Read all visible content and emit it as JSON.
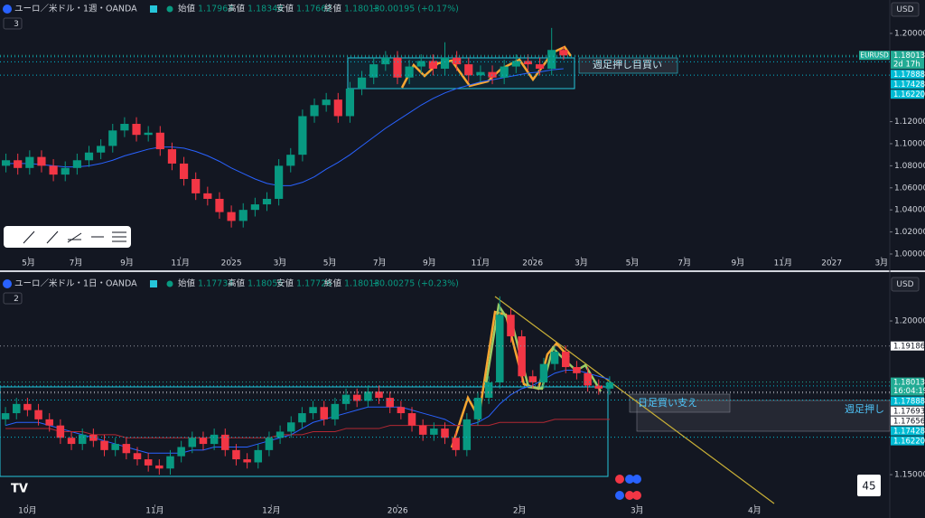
{
  "chart_data": [
    {
      "type": "candlestick",
      "symbol": "ユーロ／米ドル・1週・OANDA",
      "currency": "USD",
      "indicator_count": "3",
      "ohlc_header": {
        "open_label": "始値",
        "open": 1.17963,
        "high_label": "高値",
        "high": 1.18348,
        "low_label": "安値",
        "low": 1.17662,
        "close_label": "終値",
        "close": 1.18013,
        "change": "+0.00195 (+0.17%)"
      },
      "up_color": "#089981",
      "down_color": "#f23645",
      "open": [
        1.08,
        1.085,
        1.078,
        1.088,
        1.08,
        1.072,
        1.078,
        1.085,
        1.092,
        1.098,
        1.112,
        1.118,
        1.108,
        1.11,
        1.095,
        1.082,
        1.068,
        1.055,
        1.05,
        1.038,
        1.03,
        1.04,
        1.045,
        1.05,
        1.08,
        1.09,
        1.125,
        1.135,
        1.14,
        1.125,
        1.15,
        1.16,
        1.172,
        1.178,
        1.16,
        1.17,
        1.175,
        1.168,
        1.178,
        1.172,
        1.162,
        1.165,
        1.16,
        1.17,
        1.175,
        1.172,
        1.168,
        1.185
      ],
      "high": [
        1.091,
        1.091,
        1.094,
        1.094,
        1.086,
        1.084,
        1.091,
        1.098,
        1.104,
        1.118,
        1.124,
        1.124,
        1.116,
        1.116,
        1.101,
        1.088,
        1.074,
        1.061,
        1.056,
        1.044,
        1.046,
        1.051,
        1.056,
        1.086,
        1.096,
        1.131,
        1.141,
        1.146,
        1.146,
        1.156,
        1.166,
        1.178,
        1.184,
        1.184,
        1.176,
        1.181,
        1.181,
        1.192,
        1.184,
        1.178,
        1.171,
        1.171,
        1.176,
        1.181,
        1.181,
        1.178,
        1.205,
        1.188
      ],
      "low": [
        1.074,
        1.072,
        1.072,
        1.074,
        1.066,
        1.066,
        1.072,
        1.079,
        1.086,
        1.092,
        1.106,
        1.102,
        1.102,
        1.089,
        1.076,
        1.062,
        1.049,
        1.044,
        1.032,
        1.024,
        1.024,
        1.034,
        1.039,
        1.044,
        1.074,
        1.084,
        1.119,
        1.129,
        1.119,
        1.119,
        1.144,
        1.154,
        1.166,
        1.154,
        1.154,
        1.164,
        1.162,
        1.162,
        1.166,
        1.156,
        1.156,
        1.154,
        1.154,
        1.164,
        1.166,
        1.162,
        1.162,
        1.176
      ],
      "close": [
        1.085,
        1.078,
        1.088,
        1.08,
        1.072,
        1.078,
        1.085,
        1.092,
        1.098,
        1.112,
        1.118,
        1.108,
        1.11,
        1.095,
        1.082,
        1.068,
        1.055,
        1.05,
        1.038,
        1.03,
        1.04,
        1.045,
        1.05,
        1.08,
        1.09,
        1.125,
        1.135,
        1.14,
        1.125,
        1.15,
        1.16,
        1.172,
        1.178,
        1.16,
        1.17,
        1.175,
        1.168,
        1.178,
        1.172,
        1.162,
        1.165,
        1.16,
        1.17,
        1.175,
        1.172,
        1.168,
        1.185,
        1.18
      ],
      "moving_averages": [
        {
          "color": "#2962ff",
          "values": [
            1.082,
            1.082,
            1.082,
            1.081,
            1.08,
            1.079,
            1.079,
            1.08,
            1.082,
            1.085,
            1.089,
            1.092,
            1.095,
            1.097,
            1.097,
            1.096,
            1.093,
            1.089,
            1.084,
            1.078,
            1.073,
            1.068,
            1.064,
            1.062,
            1.062,
            1.065,
            1.07,
            1.077,
            1.083,
            1.09,
            1.098,
            1.106,
            1.114,
            1.121,
            1.128,
            1.135,
            1.141,
            1.146,
            1.15,
            1.153,
            1.156,
            1.158,
            1.16,
            1.162,
            1.164,
            1.165,
            1.167,
            1.168
          ]
        }
      ],
      "xlim": [
        -0.5,
        74.5
      ],
      "xticks": [
        {
          "value": 1.9,
          "label": "5月"
        },
        {
          "value": 5.9,
          "label": "7月"
        },
        {
          "value": 10.2,
          "label": "9月"
        },
        {
          "value": 14.7,
          "label": "11月"
        },
        {
          "value": 19.0,
          "label": "2025"
        },
        {
          "value": 23.1,
          "label": "3月"
        },
        {
          "value": 27.3,
          "label": "5月"
        },
        {
          "value": 31.5,
          "label": "7月"
        },
        {
          "value": 35.7,
          "label": "9月"
        },
        {
          "value": 40.0,
          "label": "11月"
        },
        {
          "value": 44.4,
          "label": "2026"
        },
        {
          "value": 48.5,
          "label": "3月"
        },
        {
          "value": 52.8,
          "label": "5月"
        },
        {
          "value": 57.2,
          "label": "7月"
        },
        {
          "value": 61.7,
          "label": "9月"
        },
        {
          "value": 65.5,
          "label": "11月"
        },
        {
          "value": 69.6,
          "label": "2027"
        },
        {
          "value": 73.8,
          "label": "3月"
        }
      ],
      "ylim": [
        0.9967,
        1.2139
      ],
      "yticks": [
        {
          "value": 1.0,
          "label": "1.00000"
        },
        {
          "value": 1.02,
          "label": "1.02000"
        },
        {
          "value": 1.04,
          "label": "1.04000"
        },
        {
          "value": 1.06,
          "label": "1.06000"
        },
        {
          "value": 1.08,
          "label": "1.08000"
        },
        {
          "value": 1.1,
          "label": "1.10000"
        },
        {
          "value": 1.12,
          "label": "1.12000"
        },
        {
          "value": 1.2,
          "label": "1.20000"
        }
      ],
      "symbol_tag": "EURUSD",
      "price_labels": [
        {
          "value": 1.18013,
          "label": "1.18013",
          "sub": "2d 17h",
          "color": "#22ab94"
        },
        {
          "value": 1.17888,
          "label": "1.17888",
          "color": "#00bcd4"
        },
        {
          "value": 1.17428,
          "label": "1.17428",
          "color": "#00bcd4"
        },
        {
          "value": 1.1622,
          "label": "1.16220",
          "color": "#00bcd4"
        }
      ],
      "annotations": [
        "週足押し目買い"
      ]
    },
    {
      "type": "candlestick",
      "symbol": "ユーロ／米ドル・1日・OANDA",
      "currency": "USD",
      "indicator_count": "2",
      "ohlc_header": {
        "open_label": "始値",
        "open": 1.17734,
        "high_label": "高値",
        "high": 1.18055,
        "low_label": "安値",
        "low": 1.17726,
        "close_label": "終値",
        "close": 1.18013,
        "change": "+0.00275 (+0.23%)"
      },
      "up_color": "#089981",
      "down_color": "#f23645",
      "open": [
        1.168,
        1.17,
        1.173,
        1.171,
        1.168,
        1.166,
        1.162,
        1.16,
        1.163,
        1.161,
        1.158,
        1.16,
        1.157,
        1.155,
        1.153,
        1.152,
        1.156,
        1.159,
        1.162,
        1.16,
        1.163,
        1.158,
        1.155,
        1.154,
        1.158,
        1.162,
        1.164,
        1.167,
        1.17,
        1.172,
        1.168,
        1.173,
        1.176,
        1.174,
        1.177,
        1.175,
        1.172,
        1.17,
        1.166,
        1.163,
        1.165,
        1.162,
        1.158,
        1.168,
        1.175,
        1.18,
        1.202,
        1.195,
        1.182,
        1.18,
        1.186,
        1.19,
        1.185,
        1.183,
        1.179,
        1.178
      ],
      "high": [
        1.172,
        1.175,
        1.175,
        1.173,
        1.17,
        1.168,
        1.164,
        1.165,
        1.165,
        1.163,
        1.162,
        1.162,
        1.159,
        1.157,
        1.155,
        1.158,
        1.161,
        1.164,
        1.164,
        1.165,
        1.165,
        1.16,
        1.157,
        1.16,
        1.164,
        1.166,
        1.169,
        1.172,
        1.174,
        1.174,
        1.175,
        1.178,
        1.178,
        1.179,
        1.179,
        1.177,
        1.174,
        1.172,
        1.168,
        1.167,
        1.167,
        1.164,
        1.17,
        1.177,
        1.182,
        1.208,
        1.204,
        1.197,
        1.184,
        1.188,
        1.192,
        1.192,
        1.187,
        1.185,
        1.181,
        1.182
      ],
      "low": [
        1.166,
        1.168,
        1.169,
        1.166,
        1.164,
        1.16,
        1.158,
        1.158,
        1.159,
        1.156,
        1.156,
        1.155,
        1.153,
        1.151,
        1.15,
        1.15,
        1.154,
        1.157,
        1.158,
        1.158,
        1.156,
        1.153,
        1.152,
        1.152,
        1.156,
        1.16,
        1.162,
        1.165,
        1.168,
        1.166,
        1.166,
        1.171,
        1.172,
        1.172,
        1.173,
        1.17,
        1.168,
        1.164,
        1.161,
        1.161,
        1.16,
        1.156,
        1.156,
        1.166,
        1.173,
        1.178,
        1.193,
        1.18,
        1.178,
        1.178,
        1.184,
        1.183,
        1.181,
        1.177,
        1.176,
        1.176
      ],
      "close": [
        1.17,
        1.173,
        1.171,
        1.168,
        1.166,
        1.162,
        1.16,
        1.163,
        1.161,
        1.158,
        1.16,
        1.157,
        1.155,
        1.153,
        1.152,
        1.156,
        1.159,
        1.162,
        1.16,
        1.163,
        1.158,
        1.155,
        1.154,
        1.158,
        1.162,
        1.164,
        1.167,
        1.17,
        1.172,
        1.168,
        1.173,
        1.176,
        1.174,
        1.177,
        1.175,
        1.172,
        1.17,
        1.166,
        1.163,
        1.165,
        1.162,
        1.158,
        1.168,
        1.175,
        1.18,
        1.202,
        1.195,
        1.182,
        1.18,
        1.186,
        1.19,
        1.185,
        1.183,
        1.179,
        1.178,
        1.18
      ],
      "moving_averages": [
        {
          "color": "#2962ff",
          "values": [
            1.166,
            1.167,
            1.167,
            1.167,
            1.166,
            1.165,
            1.164,
            1.163,
            1.162,
            1.161,
            1.16,
            1.159,
            1.158,
            1.157,
            1.157,
            1.157,
            1.157,
            1.158,
            1.158,
            1.159,
            1.159,
            1.159,
            1.159,
            1.16,
            1.161,
            1.162,
            1.163,
            1.165,
            1.167,
            1.168,
            1.169,
            1.17,
            1.171,
            1.172,
            1.172,
            1.172,
            1.172,
            1.171,
            1.17,
            1.169,
            1.168,
            1.166,
            1.166,
            1.167,
            1.169,
            1.173,
            1.176,
            1.178,
            1.179,
            1.181,
            1.183,
            1.184,
            1.184,
            1.183,
            1.182,
            1.181
          ]
        },
        {
          "color": "#b22833",
          "values": [
            1.165,
            1.165,
            1.165,
            1.165,
            1.165,
            1.164,
            1.164,
            1.164,
            1.163,
            1.163,
            1.163,
            1.162,
            1.162,
            1.162,
            1.162,
            1.162,
            1.162,
            1.162,
            1.162,
            1.162,
            1.162,
            1.162,
            1.162,
            1.162,
            1.162,
            1.163,
            1.163,
            1.163,
            1.164,
            1.164,
            1.164,
            1.165,
            1.165,
            1.165,
            1.165,
            1.166,
            1.166,
            1.166,
            1.166,
            1.166,
            1.166,
            1.166,
            1.166,
            1.166,
            1.166,
            1.167,
            1.167,
            1.167,
            1.167,
            1.167,
            1.168,
            1.168,
            1.168,
            1.168,
            1.168,
            1.168
          ]
        }
      ],
      "xlim": [
        -0.5,
        80.5
      ],
      "xticks": [
        {
          "value": 2.0,
          "label": "10月"
        },
        {
          "value": 13.6,
          "label": "11月"
        },
        {
          "value": 24.2,
          "label": "12月"
        },
        {
          "value": 35.7,
          "label": "2026"
        },
        {
          "value": 46.8,
          "label": "2月"
        },
        {
          "value": 57.5,
          "label": "3月"
        },
        {
          "value": 68.2,
          "label": "4月"
        }
      ],
      "ylim": [
        1.1412,
        1.2103
      ],
      "yticks": [
        {
          "value": 1.15,
          "label": "1.15000"
        },
        {
          "value": 1.2,
          "label": "1.20000"
        }
      ],
      "price_labels": [
        {
          "value": 1.19186,
          "label": "1.19186",
          "color": "#ffffff"
        },
        {
          "value": 1.18013,
          "label": "1.18013",
          "sub": "16:04:19",
          "color": "#22ab94"
        },
        {
          "value": 1.17888,
          "label": "1.17888",
          "color": "#00bcd4"
        },
        {
          "value": 1.17693,
          "label": "1.17693",
          "color": "#ffffff"
        },
        {
          "value": 1.17656,
          "label": "1.17656",
          "color": "#ffffff"
        },
        {
          "value": 1.17428,
          "label": "1.17428",
          "color": "#00bcd4"
        },
        {
          "value": 1.1622,
          "label": "1.16220",
          "color": "#00bcd4"
        }
      ],
      "annotations": [
        "日足買い支え",
        "週足押し",
        "45"
      ]
    }
  ]
}
